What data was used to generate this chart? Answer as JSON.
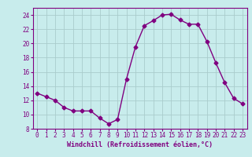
{
  "x": [
    0,
    1,
    2,
    3,
    4,
    5,
    6,
    7,
    8,
    9,
    10,
    11,
    12,
    13,
    14,
    15,
    16,
    17,
    18,
    19,
    20,
    21,
    22,
    23
  ],
  "y": [
    13,
    12.5,
    12,
    11,
    10.5,
    10.5,
    10.5,
    9.5,
    8.7,
    9.3,
    15,
    19.5,
    22.5,
    23.2,
    24.0,
    24.1,
    23.3,
    22.7,
    22.7,
    20.3,
    17.3,
    14.5,
    12.3,
    11.5
  ],
  "line_color": "#800080",
  "marker": "D",
  "marker_size": 2.5,
  "bg_color": "#c8ecec",
  "grid_color": "#aacccc",
  "xlabel": "Windchill (Refroidissement éolien,°C)",
  "xlabel_color": "#800080",
  "tick_color": "#800080",
  "ylim": [
    8,
    25
  ],
  "yticks": [
    8,
    10,
    12,
    14,
    16,
    18,
    20,
    22,
    24
  ],
  "xlim": [
    -0.5,
    23.5
  ],
  "xticks": [
    0,
    1,
    2,
    3,
    4,
    5,
    6,
    7,
    8,
    9,
    10,
    11,
    12,
    13,
    14,
    15,
    16,
    17,
    18,
    19,
    20,
    21,
    22,
    23
  ],
  "tick_fontsize": 5.5,
  "xlabel_fontsize": 6.0,
  "linewidth": 1.0
}
